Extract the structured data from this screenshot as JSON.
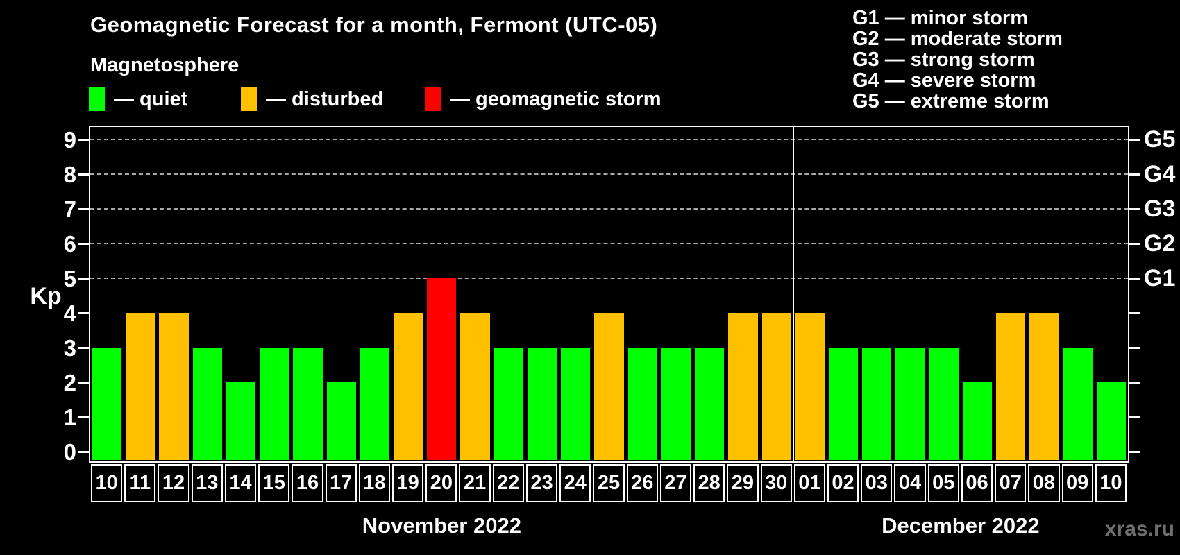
{
  "header": {
    "title": "Geomagnetic Forecast for a month, Fermont (UTC-05)"
  },
  "watermark": "xras.ru",
  "magnetosphere_legend": {
    "title": "Magnetosphere",
    "items": [
      {
        "state": "quiet",
        "label": "— quiet",
        "color": "#00ff00"
      },
      {
        "state": "disturbed",
        "label": "— disturbed",
        "color": "#ffc000"
      },
      {
        "state": "storm",
        "label": "— geomagnetic storm",
        "color": "#ff0000"
      }
    ]
  },
  "storm_scale_legend": [
    "G1 — minor storm",
    "G2 — moderate storm",
    "G3 — strong storm",
    "G4 — severe storm",
    "G5 — extreme storm"
  ],
  "chart_data": {
    "type": "bar",
    "ylabel": "Kp",
    "ylim": [
      0,
      9
    ],
    "yticks": [
      0,
      1,
      2,
      3,
      4,
      5,
      6,
      7,
      8,
      9
    ],
    "grid": "dashed horizontal lines at storm levels G1-G5 (Kp 5-9)",
    "legend_position": "top",
    "state_colors": {
      "quiet": "#00ff00",
      "disturbed": "#ffc000",
      "storm": "#ff0000"
    },
    "g_levels": [
      {
        "label": "G1",
        "kp": 5
      },
      {
        "label": "G2",
        "kp": 6
      },
      {
        "label": "G3",
        "kp": 7
      },
      {
        "label": "G4",
        "kp": 8
      },
      {
        "label": "G5",
        "kp": 9
      }
    ],
    "months": [
      {
        "label": "November 2022",
        "days": [
          {
            "day": "10",
            "kp": 3,
            "state": "quiet"
          },
          {
            "day": "11",
            "kp": 4,
            "state": "disturbed"
          },
          {
            "day": "12",
            "kp": 4,
            "state": "disturbed"
          },
          {
            "day": "13",
            "kp": 3,
            "state": "quiet"
          },
          {
            "day": "14",
            "kp": 2,
            "state": "quiet"
          },
          {
            "day": "15",
            "kp": 3,
            "state": "quiet"
          },
          {
            "day": "16",
            "kp": 3,
            "state": "quiet"
          },
          {
            "day": "17",
            "kp": 2,
            "state": "quiet"
          },
          {
            "day": "18",
            "kp": 3,
            "state": "quiet"
          },
          {
            "day": "19",
            "kp": 4,
            "state": "disturbed"
          },
          {
            "day": "20",
            "kp": 5,
            "state": "storm"
          },
          {
            "day": "21",
            "kp": 4,
            "state": "disturbed"
          },
          {
            "day": "22",
            "kp": 3,
            "state": "quiet"
          },
          {
            "day": "23",
            "kp": 3,
            "state": "quiet"
          },
          {
            "day": "24",
            "kp": 3,
            "state": "quiet"
          },
          {
            "day": "25",
            "kp": 4,
            "state": "disturbed"
          },
          {
            "day": "26",
            "kp": 3,
            "state": "quiet"
          },
          {
            "day": "27",
            "kp": 3,
            "state": "quiet"
          },
          {
            "day": "28",
            "kp": 3,
            "state": "quiet"
          },
          {
            "day": "29",
            "kp": 4,
            "state": "disturbed"
          },
          {
            "day": "30",
            "kp": 4,
            "state": "disturbed"
          }
        ]
      },
      {
        "label": "December 2022",
        "days": [
          {
            "day": "01",
            "kp": 4,
            "state": "disturbed"
          },
          {
            "day": "02",
            "kp": 3,
            "state": "quiet"
          },
          {
            "day": "03",
            "kp": 3,
            "state": "quiet"
          },
          {
            "day": "04",
            "kp": 3,
            "state": "quiet"
          },
          {
            "day": "05",
            "kp": 3,
            "state": "quiet"
          },
          {
            "day": "06",
            "kp": 2,
            "state": "quiet"
          },
          {
            "day": "07",
            "kp": 4,
            "state": "disturbed"
          },
          {
            "day": "08",
            "kp": 4,
            "state": "disturbed"
          },
          {
            "day": "09",
            "kp": 3,
            "state": "quiet"
          },
          {
            "day": "10",
            "kp": 2,
            "state": "quiet"
          }
        ]
      }
    ]
  }
}
